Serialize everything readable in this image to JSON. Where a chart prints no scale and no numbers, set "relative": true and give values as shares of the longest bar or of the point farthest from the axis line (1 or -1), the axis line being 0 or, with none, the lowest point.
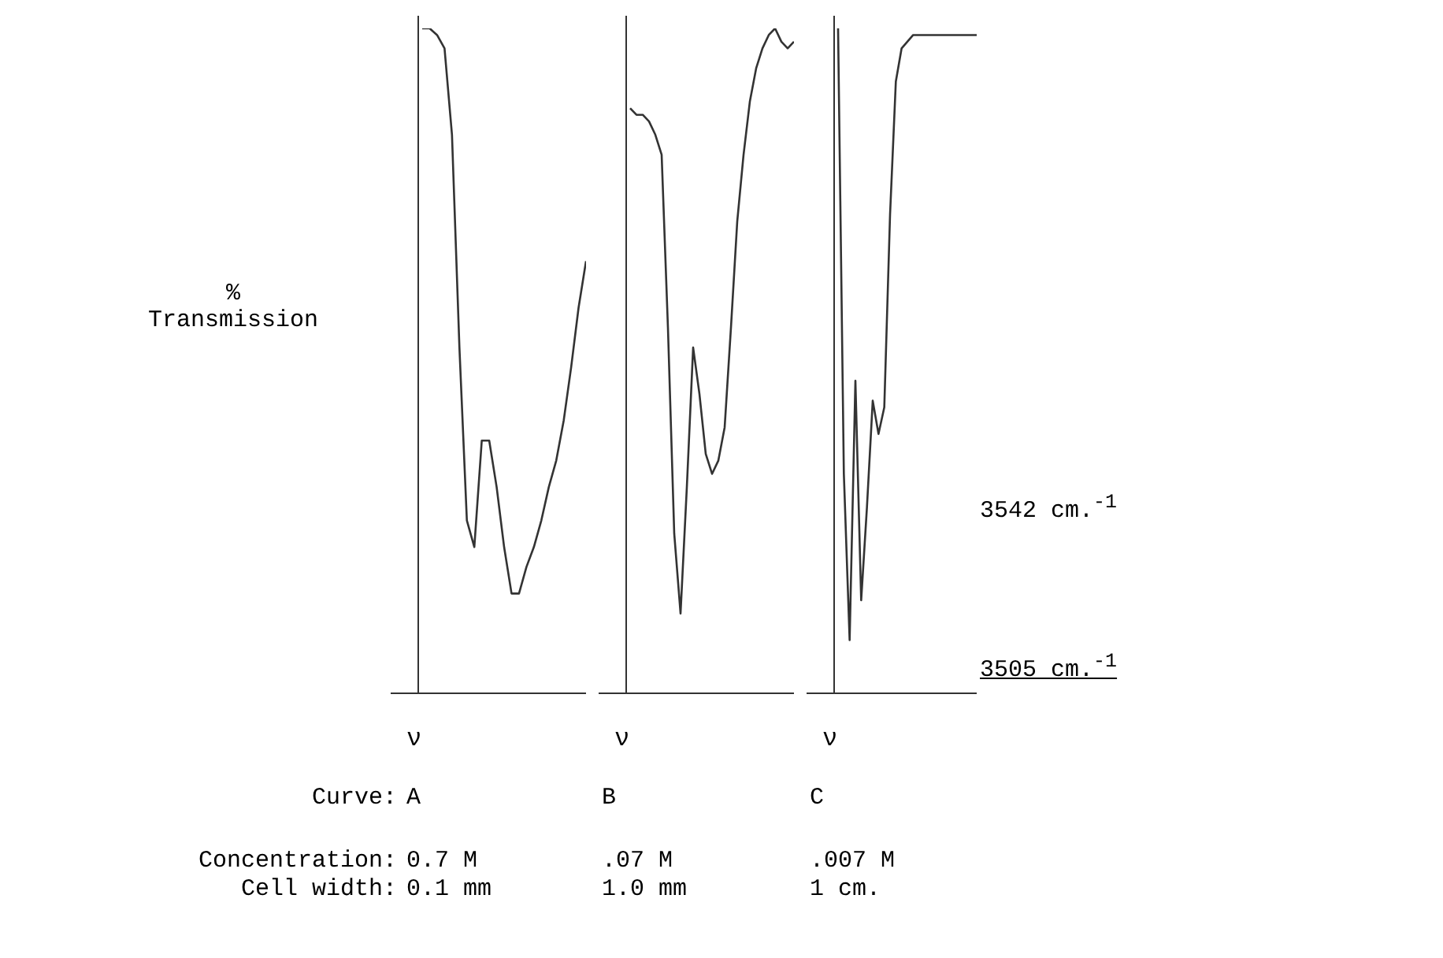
{
  "chart_data": [
    {
      "type": "line",
      "relative": true,
      "ylabel": "%\nTransmission",
      "xlabel": "ν",
      "marker": "none",
      "categories": [
        null,
        null,
        null,
        null,
        null,
        null,
        null,
        null,
        null,
        null,
        null,
        null,
        null,
        null,
        null,
        null,
        null,
        null,
        null,
        null,
        null,
        null,
        null
      ],
      "series": [
        {
          "color": "#333333",
          "values": [
            1.0,
            1.0,
            0.99,
            0.97,
            0.84,
            0.52,
            0.26,
            0.22,
            0.38,
            0.38,
            0.31,
            0.22,
            0.15,
            0.15,
            0.19,
            0.22,
            0.26,
            0.31,
            0.35,
            0.41,
            0.49,
            0.58,
            0.65
          ]
        }
      ],
      "annotations": [
        "Curve:",
        "A",
        "Concentration:",
        "0.7 M",
        "Cell width:",
        "0.1 mm"
      ]
    },
    {
      "type": "line",
      "relative": true,
      "xlabel": "ν",
      "marker": "none",
      "categories": [
        null,
        null,
        null,
        null,
        null,
        null,
        null,
        null,
        null,
        null,
        null,
        null,
        null,
        null,
        null,
        null,
        null,
        null,
        null,
        null,
        null,
        null,
        null,
        null,
        null,
        null,
        null
      ],
      "series": [
        {
          "color": "#333333",
          "values": [
            0.88,
            0.87,
            0.87,
            0.86,
            0.84,
            0.81,
            0.55,
            0.24,
            0.12,
            0.31,
            0.52,
            0.45,
            0.36,
            0.33,
            0.35,
            0.4,
            0.55,
            0.71,
            0.81,
            0.89,
            0.94,
            0.97,
            0.99,
            1.0,
            0.98,
            0.97,
            0.98
          ]
        }
      ],
      "annotations": [
        "B",
        ".07 M",
        "1.0 mm"
      ]
    },
    {
      "type": "line",
      "relative": true,
      "xlabel": "ν",
      "marker": "none",
      "categories": [
        null,
        null,
        null,
        null,
        null,
        null,
        null,
        null,
        null,
        null,
        null,
        null,
        null,
        null,
        null,
        null,
        null,
        null,
        null,
        null,
        null,
        null,
        null,
        null,
        null
      ],
      "series": [
        {
          "color": "#333333",
          "values": [
            1.0,
            0.33,
            0.08,
            0.47,
            0.14,
            0.28,
            0.44,
            0.39,
            0.43,
            0.72,
            0.92,
            0.97,
            0.98,
            0.99,
            0.99,
            0.99,
            0.99,
            0.99,
            0.99,
            0.99,
            0.99,
            0.99,
            0.99,
            0.99,
            0.99
          ]
        }
      ],
      "annotations": [
        "C",
        ".007 M",
        "1 cm.",
        "3542 cm.$^{-1}$",
        "3505 cm.$^{-1}$"
      ]
    }
  ]
}
